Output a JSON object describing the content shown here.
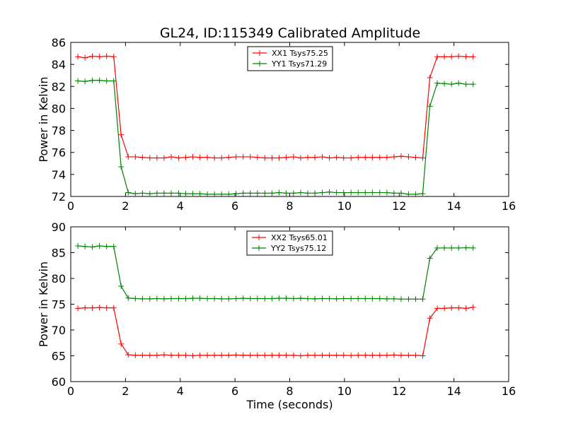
{
  "figure": {
    "title": "GL24, ID:115349 Calibrated Amplitude"
  },
  "chart_data": [
    {
      "type": "line",
      "title": "GL24, ID:115349 Calibrated Amplitude",
      "xlabel": "",
      "ylabel": "Power in Kelvin",
      "xlim": [
        0,
        16
      ],
      "ylim": [
        72,
        86
      ],
      "xticks": [
        "0",
        "2",
        "4",
        "6",
        "8",
        "10",
        "12",
        "14",
        "16"
      ],
      "yticks": [
        "72",
        "74",
        "76",
        "78",
        "80",
        "82",
        "84",
        "86"
      ],
      "grid": false,
      "legend_position": "top-center",
      "x": [
        0.26,
        0.52,
        0.79,
        1.05,
        1.31,
        1.57,
        1.84,
        2.1,
        2.36,
        2.62,
        2.89,
        3.15,
        3.41,
        3.67,
        3.94,
        4.2,
        4.46,
        4.72,
        4.99,
        5.25,
        5.51,
        5.77,
        6.04,
        6.3,
        6.56,
        6.82,
        7.09,
        7.35,
        7.61,
        7.87,
        8.14,
        8.4,
        8.66,
        8.92,
        9.19,
        9.45,
        9.71,
        9.97,
        10.24,
        10.5,
        10.76,
        11.02,
        11.29,
        11.55,
        11.81,
        12.07,
        12.34,
        12.6,
        12.86,
        13.12,
        13.39,
        13.65,
        13.91,
        14.17,
        14.44,
        14.7
      ],
      "series": [
        {
          "name": "XX1 Tsys75.25",
          "color": "#ff0000",
          "values": [
            84.7,
            84.6,
            84.75,
            84.7,
            84.75,
            84.7,
            77.6,
            75.6,
            75.6,
            75.55,
            75.5,
            75.5,
            75.5,
            75.6,
            75.5,
            75.55,
            75.6,
            75.55,
            75.55,
            75.5,
            75.5,
            75.55,
            75.6,
            75.6,
            75.6,
            75.55,
            75.5,
            75.5,
            75.5,
            75.55,
            75.6,
            75.5,
            75.55,
            75.55,
            75.6,
            75.5,
            75.55,
            75.5,
            75.5,
            75.55,
            75.55,
            75.55,
            75.55,
            75.55,
            75.6,
            75.65,
            75.6,
            75.55,
            75.5,
            82.8,
            84.7,
            84.7,
            84.7,
            84.75,
            84.7,
            84.7
          ]
        },
        {
          "name": "YY1 Tsys71.29",
          "color": "#008000",
          "values": [
            82.5,
            82.45,
            82.55,
            82.55,
            82.5,
            82.5,
            74.7,
            72.35,
            72.25,
            72.3,
            72.25,
            72.3,
            72.3,
            72.3,
            72.3,
            72.25,
            72.25,
            72.25,
            72.2,
            72.2,
            72.2,
            72.2,
            72.25,
            72.3,
            72.3,
            72.3,
            72.3,
            72.3,
            72.35,
            72.3,
            72.3,
            72.35,
            72.3,
            72.3,
            72.35,
            72.4,
            72.35,
            72.35,
            72.35,
            72.35,
            72.35,
            72.35,
            72.35,
            72.35,
            72.3,
            72.3,
            72.2,
            72.2,
            72.25,
            80.2,
            82.3,
            82.25,
            82.2,
            82.3,
            82.2,
            82.2
          ]
        }
      ]
    },
    {
      "type": "line",
      "title": "",
      "xlabel": "Time (seconds)",
      "ylabel": "Power in Kelvin",
      "xlim": [
        0,
        16
      ],
      "ylim": [
        60,
        90
      ],
      "xticks": [
        "0",
        "2",
        "4",
        "6",
        "8",
        "10",
        "12",
        "14",
        "16"
      ],
      "yticks": [
        "60",
        "65",
        "70",
        "75",
        "80",
        "85",
        "90"
      ],
      "grid": false,
      "legend_position": "top-center",
      "x": [
        0.26,
        0.52,
        0.79,
        1.05,
        1.31,
        1.57,
        1.84,
        2.1,
        2.36,
        2.62,
        2.89,
        3.15,
        3.41,
        3.67,
        3.94,
        4.2,
        4.46,
        4.72,
        4.99,
        5.25,
        5.51,
        5.77,
        6.04,
        6.3,
        6.56,
        6.82,
        7.09,
        7.35,
        7.61,
        7.87,
        8.14,
        8.4,
        8.66,
        8.92,
        9.19,
        9.45,
        9.71,
        9.97,
        10.24,
        10.5,
        10.76,
        11.02,
        11.29,
        11.55,
        11.81,
        12.07,
        12.34,
        12.6,
        12.86,
        13.12,
        13.39,
        13.65,
        13.91,
        14.17,
        14.44,
        14.7
      ],
      "series": [
        {
          "name": "XX2 Tsys65.01",
          "color": "#ff0000",
          "values": [
            74.2,
            74.3,
            74.3,
            74.35,
            74.3,
            74.3,
            67.3,
            65.2,
            65.1,
            65.1,
            65.1,
            65.1,
            65.2,
            65.1,
            65.1,
            65.1,
            65.0,
            65.1,
            65.1,
            65.1,
            65.1,
            65.1,
            65.15,
            65.1,
            65.1,
            65.1,
            65.1,
            65.1,
            65.1,
            65.1,
            65.1,
            65.0,
            65.1,
            65.1,
            65.1,
            65.1,
            65.1,
            65.1,
            65.05,
            65.1,
            65.1,
            65.1,
            65.1,
            65.1,
            65.15,
            65.1,
            65.1,
            65.1,
            65.0,
            72.3,
            74.2,
            74.2,
            74.3,
            74.3,
            74.2,
            74.4
          ]
        },
        {
          "name": "YY2 Tsys75.12",
          "color": "#008000",
          "values": [
            86.3,
            86.2,
            86.1,
            86.3,
            86.2,
            86.2,
            78.5,
            76.2,
            76.1,
            76.05,
            76.05,
            76.1,
            76.05,
            76.1,
            76.1,
            76.1,
            76.15,
            76.15,
            76.1,
            76.1,
            76.05,
            76.05,
            76.1,
            76.15,
            76.1,
            76.1,
            76.1,
            76.1,
            76.15,
            76.15,
            76.1,
            76.15,
            76.1,
            76.05,
            76.1,
            76.1,
            76.05,
            76.1,
            76.1,
            76.1,
            76.1,
            76.1,
            76.1,
            76.05,
            76.05,
            76.0,
            76.0,
            76.0,
            76.0,
            83.9,
            85.9,
            85.9,
            85.9,
            85.9,
            85.95,
            85.9
          ]
        }
      ]
    }
  ]
}
